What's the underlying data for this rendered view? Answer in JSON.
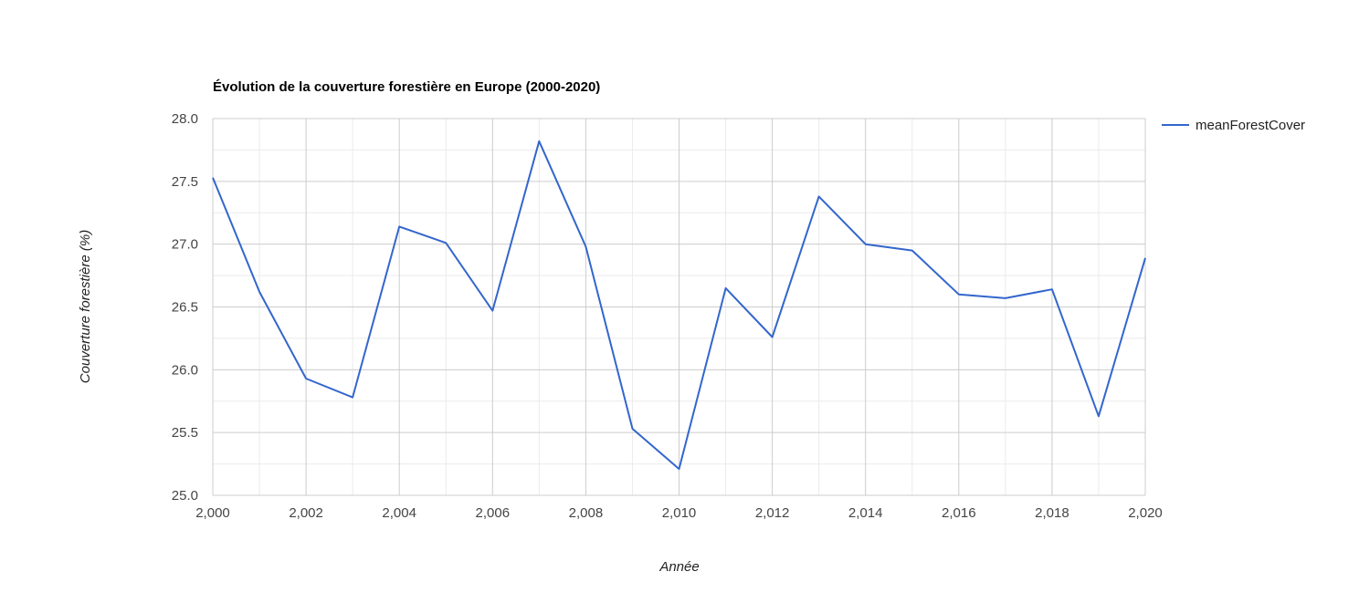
{
  "colors": {
    "series": "#3366cc",
    "gridMajor": "#cccccc",
    "gridMinor": "#ebebeb",
    "text": "#444444"
  },
  "chart_data": {
    "type": "line",
    "title": "Évolution de la couverture forestière en Europe (2000-2020)",
    "xlabel": "Année",
    "ylabel": "Couverture forestière (%)",
    "xlim": [
      2000,
      2020
    ],
    "ylim": [
      25.0,
      28.0
    ],
    "x_ticks": [
      2000,
      2002,
      2004,
      2006,
      2008,
      2010,
      2012,
      2014,
      2016,
      2018,
      2020
    ],
    "x_tick_labels": [
      "2,000",
      "2,002",
      "2,004",
      "2,006",
      "2,008",
      "2,010",
      "2,012",
      "2,014",
      "2,016",
      "2,018",
      "2,020"
    ],
    "y_ticks": [
      25.0,
      25.5,
      26.0,
      26.5,
      27.0,
      27.5,
      28.0
    ],
    "y_tick_labels": [
      "25.0",
      "25.5",
      "26.0",
      "26.5",
      "27.0",
      "27.5",
      "28.0"
    ],
    "grid": true,
    "legend_position": "right",
    "series": [
      {
        "name": "meanForestCover",
        "x": [
          2000,
          2001,
          2002,
          2003,
          2004,
          2005,
          2006,
          2007,
          2008,
          2009,
          2010,
          2011,
          2012,
          2013,
          2014,
          2015,
          2016,
          2017,
          2018,
          2019,
          2020
        ],
        "values": [
          27.53,
          26.62,
          25.93,
          25.78,
          27.14,
          27.01,
          26.47,
          27.82,
          26.98,
          25.53,
          25.21,
          26.65,
          26.26,
          27.38,
          27.0,
          26.95,
          26.6,
          26.57,
          26.64,
          25.63,
          26.89
        ]
      }
    ]
  }
}
